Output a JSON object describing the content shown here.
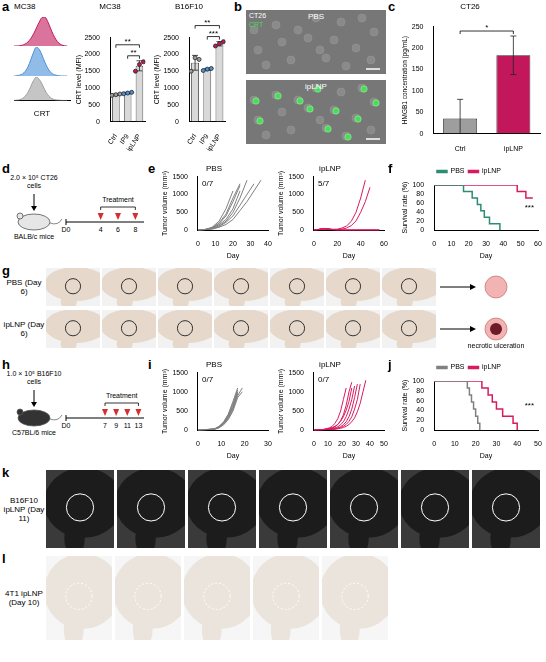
{
  "chart_data": [
    {
      "panel": "a",
      "type": "ridgeline",
      "title": "MC38",
      "x_label": "CRT",
      "tick_labels": false,
      "x": [
        0,
        5,
        10,
        15,
        20,
        25,
        30,
        35,
        40,
        45,
        50,
        55,
        60,
        65,
        70,
        75,
        80,
        85,
        90,
        95
      ],
      "xlim": [
        0,
        100
      ],
      "ylim": [
        0,
        100
      ],
      "series": [
        {
          "color": "#c2185b",
          "values": [
            0,
            0,
            1,
            3,
            7,
            14,
            26,
            42,
            62,
            82,
            98,
            100,
            85,
            62,
            40,
            22,
            10,
            4,
            1,
            0
          ]
        },
        {
          "color": "#4a90d9",
          "values": [
            0,
            1,
            3,
            7,
            16,
            32,
            56,
            82,
            100,
            92,
            72,
            48,
            28,
            14,
            6,
            3,
            1,
            0,
            0,
            0
          ]
        },
        {
          "color": "#9e9e9e",
          "values": [
            0,
            1,
            3,
            8,
            18,
            35,
            60,
            85,
            100,
            90,
            70,
            45,
            25,
            12,
            5,
            2,
            1,
            0,
            0,
            0
          ]
        }
      ]
    },
    {
      "type": "bar",
      "title": "MC38",
      "y_label": "CRT level (MFI)",
      "categories": [
        "Ctrl",
        "IP9",
        "ipLNP"
      ],
      "values": [
        800,
        850,
        1660
      ],
      "errors": [
        20,
        20,
        150
      ],
      "points": [
        [
          780,
          800,
          820
        ],
        [
          830,
          850,
          870
        ],
        [
          1500,
          1700,
          1780
        ]
      ],
      "colors": [
        "#9e9e9e",
        "#4a90d9",
        "#c2185b"
      ],
      "ylim": [
        0,
        2500
      ],
      "yticks": [
        0,
        500,
        1000,
        1500,
        2000,
        2500
      ],
      "significance": [
        {
          "from": "IP9",
          "to": "ipLNP",
          "label": "**"
        },
        {
          "from": "Ctrl",
          "to": "ipLNP",
          "label": "**"
        }
      ]
    },
    {
      "type": "bar",
      "title": "B16F10",
      "y_label": "CRT level (MFI)",
      "categories": [
        "Ctrl",
        "IP9",
        "ipLNP"
      ],
      "values": [
        1750,
        1553,
        2317
      ],
      "errors": [
        220,
        30,
        65
      ],
      "points": [
        [
          1500,
          1900,
          1850
        ],
        [
          1520,
          1560,
          1580
        ],
        [
          2250,
          2320,
          2380
        ]
      ],
      "colors": [
        "#9e9e9e",
        "#4a90d9",
        "#c2185b"
      ],
      "ylim": [
        0,
        2500
      ],
      "yticks": [
        0,
        500,
        1000,
        1500,
        2000,
        2500
      ],
      "significance": [
        {
          "from": "IP9",
          "to": "ipLNP",
          "label": "***"
        },
        {
          "from": "Ctrl",
          "to": "ipLNP",
          "label": "**"
        }
      ]
    },
    {
      "panel": "c",
      "type": "bar",
      "title": "CT26",
      "y_label": "HMGB1 concentration (pg/mL)",
      "categories": [
        "Ctrl",
        "ipLNP"
      ],
      "values": [
        35,
        183
      ],
      "errors": [
        45,
        45
      ],
      "colors": [
        "#9e9e9e",
        "#c2185b"
      ],
      "ylim": [
        0,
        250
      ],
      "yticks": [
        0,
        50,
        100,
        150,
        200,
        250
      ],
      "significance": [
        {
          "from": "Ctrl",
          "to": "ipLNP",
          "label": "*"
        }
      ]
    },
    {
      "panel": "e",
      "type": "line",
      "title": "PBS",
      "annotation": "0/7",
      "x_label": "Day",
      "y_label": "Tumor volume (mm³)",
      "x": [
        0,
        4,
        8,
        12,
        16,
        20,
        24,
        28,
        32,
        36
      ],
      "xlim": [
        0,
        40
      ],
      "xticks": [
        0,
        10,
        20,
        30,
        40
      ],
      "ylim": [
        0,
        1500
      ],
      "yticks": [
        0,
        500,
        1000,
        1500
      ],
      "series": [
        {
          "color": "#808080",
          "values": [
            0,
            20,
            60,
            150,
            300,
            600,
            1100,
            null,
            null,
            null
          ]
        },
        {
          "color": "#808080",
          "values": [
            0,
            15,
            50,
            120,
            250,
            500,
            900,
            1400,
            null,
            null
          ]
        },
        {
          "color": "#808080",
          "values": [
            0,
            20,
            70,
            200,
            450,
            900,
            1300,
            null,
            null,
            null
          ]
        },
        {
          "color": "#808080",
          "values": [
            0,
            10,
            40,
            100,
            220,
            400,
            700,
            1000,
            1300,
            null
          ]
        },
        {
          "color": "#808080",
          "values": [
            0,
            10,
            30,
            80,
            160,
            300,
            550,
            800,
            1100,
            1400
          ]
        },
        {
          "color": "#808080",
          "values": [
            0,
            20,
            80,
            250,
            600,
            1100,
            null,
            null,
            null,
            null
          ]
        },
        {
          "color": "#808080",
          "values": [
            0,
            15,
            60,
            180,
            400,
            800,
            1250,
            null,
            null,
            null
          ]
        }
      ]
    },
    {
      "type": "line",
      "title": "ipLNP",
      "annotation": "5/7",
      "x_label": "Day",
      "y_label": "Tumor volume (mm³)",
      "x": [
        0,
        4,
        8,
        12,
        16,
        20,
        24,
        28,
        32,
        36,
        40,
        44,
        48,
        52,
        56
      ],
      "xlim": [
        0,
        60
      ],
      "xticks": [
        0,
        20,
        40,
        60
      ],
      "ylim": [
        0,
        1500
      ],
      "yticks": [
        0,
        500,
        1000,
        1500
      ],
      "series": [
        {
          "color": "#d81b60",
          "values": [
            0,
            20,
            40,
            30,
            10,
            0,
            0,
            0,
            0,
            0,
            0,
            0,
            0,
            0,
            0
          ]
        },
        {
          "color": "#d81b60",
          "values": [
            0,
            25,
            50,
            40,
            20,
            5,
            0,
            0,
            0,
            0,
            0,
            0,
            0,
            0,
            0
          ]
        },
        {
          "color": "#d81b60",
          "values": [
            0,
            15,
            35,
            25,
            10,
            0,
            0,
            0,
            0,
            0,
            0,
            0,
            0,
            0,
            0
          ]
        },
        {
          "color": "#d81b60",
          "values": [
            0,
            20,
            45,
            35,
            15,
            5,
            0,
            0,
            0,
            0,
            0,
            0,
            0,
            0,
            0
          ]
        },
        {
          "color": "#d81b60",
          "values": [
            0,
            10,
            30,
            20,
            5,
            0,
            0,
            0,
            0,
            0,
            0,
            0,
            0,
            0,
            0
          ]
        },
        {
          "color": "#d81b60",
          "values": [
            0,
            20,
            40,
            30,
            20,
            30,
            60,
            120,
            250,
            500,
            900,
            1400,
            null,
            null,
            null
          ]
        },
        {
          "color": "#d81b60",
          "values": [
            0,
            15,
            40,
            35,
            25,
            20,
            30,
            60,
            130,
            260,
            500,
            800,
            1200,
            null,
            null
          ]
        }
      ]
    },
    {
      "panel": "f",
      "type": "step",
      "annotation": "***",
      "x_label": "Day",
      "y_label": "Survival rate (%)",
      "xlim": [
        0,
        60
      ],
      "xticks": [
        0,
        10,
        20,
        30,
        40,
        50,
        60
      ],
      "ylim": [
        0,
        100
      ],
      "yticks": [
        0,
        20,
        40,
        60,
        80,
        100
      ],
      "legend": "top",
      "series": [
        {
          "name": "PBS",
          "color": "#2e8b74",
          "x": [
            0,
            17,
            22,
            25,
            27,
            29,
            32,
            38
          ],
          "values": [
            100,
            85.7,
            71.4,
            57.1,
            42.9,
            28.6,
            14.3,
            0
          ]
        },
        {
          "name": "ipLNP",
          "color": "#d81b60",
          "x": [
            0,
            48,
            53,
            57
          ],
          "values": [
            100,
            85.7,
            71.4,
            71.4
          ]
        }
      ]
    },
    {
      "panel": "i",
      "type": "line",
      "title": "PBS",
      "annotation": "0/7",
      "x_label": "Day",
      "y_label": "Tumor volume (mm³)",
      "x": [
        0,
        7,
        9,
        11,
        13,
        15,
        17,
        19
      ],
      "xlim": [
        0,
        30
      ],
      "xticks": [
        0,
        10,
        20,
        30
      ],
      "ylim": [
        0,
        1500
      ],
      "yticks": [
        0,
        500,
        1000,
        1500
      ],
      "series": [
        {
          "color": "#808080",
          "values": [
            0,
            30,
            80,
            180,
            350,
            600,
            1000,
            null
          ]
        },
        {
          "color": "#808080",
          "values": [
            0,
            25,
            70,
            160,
            300,
            550,
            900,
            1100
          ]
        },
        {
          "color": "#808080",
          "values": [
            0,
            30,
            90,
            200,
            400,
            700,
            1050,
            null
          ]
        },
        {
          "color": "#808080",
          "values": [
            0,
            20,
            60,
            140,
            280,
            500,
            850,
            1000
          ]
        },
        {
          "color": "#808080",
          "values": [
            0,
            35,
            100,
            220,
            420,
            750,
            1100,
            null
          ]
        },
        {
          "color": "#808080",
          "values": [
            0,
            25,
            75,
            170,
            330,
            580,
            950,
            null
          ]
        },
        {
          "color": "#808080",
          "values": [
            0,
            30,
            85,
            190,
            370,
            650,
            1000,
            null
          ]
        }
      ]
    },
    {
      "type": "line",
      "title": "ipLNP",
      "annotation": "0/7",
      "x_label": "Day",
      "y_label": "Tumor volume (mm³)",
      "x": [
        0,
        7,
        9,
        11,
        13,
        15,
        17,
        19,
        21,
        23,
        25,
        27,
        29,
        31,
        33,
        35,
        37,
        39,
        41
      ],
      "xlim": [
        0,
        50
      ],
      "xticks": [
        0,
        10,
        20,
        30,
        40,
        50
      ],
      "ylim": [
        0,
        1500
      ],
      "yticks": [
        0,
        500,
        1000,
        1500
      ],
      "series": [
        {
          "color": "#d81b60",
          "values": [
            0,
            20,
            40,
            60,
            100,
            180,
            300,
            500,
            800,
            1100,
            null,
            null,
            null,
            null,
            null,
            null,
            null,
            null,
            null
          ]
        },
        {
          "color": "#d81b60",
          "values": [
            0,
            15,
            30,
            40,
            60,
            90,
            150,
            250,
            400,
            650,
            1000,
            1250,
            null,
            null,
            null,
            null,
            null,
            null,
            null
          ]
        },
        {
          "color": "#d81b60",
          "values": [
            0,
            20,
            35,
            50,
            70,
            100,
            150,
            230,
            350,
            520,
            750,
            1100,
            null,
            null,
            null,
            null,
            null,
            null,
            null
          ]
        },
        {
          "color": "#d81b60",
          "values": [
            0,
            15,
            25,
            30,
            40,
            60,
            90,
            140,
            220,
            350,
            550,
            800,
            1150,
            null,
            null,
            null,
            null,
            null,
            null
          ]
        },
        {
          "color": "#d81b60",
          "values": [
            0,
            10,
            20,
            25,
            30,
            40,
            60,
            90,
            140,
            220,
            350,
            550,
            850,
            1200,
            null,
            null,
            null,
            null,
            null
          ]
        },
        {
          "color": "#d81b60",
          "values": [
            0,
            10,
            20,
            20,
            25,
            35,
            50,
            70,
            100,
            150,
            230,
            350,
            550,
            800,
            1200,
            null,
            null,
            null,
            null
          ]
        },
        {
          "color": "#d81b60",
          "values": [
            0,
            10,
            15,
            20,
            20,
            25,
            35,
            50,
            70,
            100,
            150,
            220,
            320,
            480,
            700,
            1000,
            1300,
            null,
            null
          ]
        }
      ]
    },
    {
      "panel": "j",
      "type": "step",
      "annotation": "***",
      "x_label": "Day",
      "y_label": "Survival rate (%)",
      "xlim": [
        0,
        50
      ],
      "xticks": [
        0,
        10,
        20,
        30,
        40,
        50
      ],
      "ylim": [
        0,
        100
      ],
      "yticks": [
        0,
        20,
        40,
        60,
        80,
        100
      ],
      "legend": "top",
      "series": [
        {
          "name": "PBS",
          "color": "#808080",
          "x": [
            0,
            16,
            17,
            18,
            19,
            20,
            21,
            22
          ],
          "values": [
            100,
            85.7,
            71.4,
            57.1,
            42.9,
            28.6,
            14.3,
            0
          ]
        },
        {
          "name": "ipLNP",
          "color": "#d81b60",
          "x": [
            0,
            23,
            26,
            28,
            30,
            33,
            38,
            40
          ],
          "values": [
            100,
            85.7,
            71.4,
            57.1,
            42.9,
            28.6,
            14.3,
            0
          ]
        }
      ]
    }
  ],
  "images": {
    "panel": "b",
    "cell_line": "CT26",
    "stain": "CRT",
    "rows": [
      "PBS",
      "ipLNP"
    ]
  },
  "diagrams": [
    {
      "panel": "d",
      "cells": "2.0 × 10⁵ CT26 cells",
      "mice": "BALB/c mice",
      "start": "D0",
      "treatment": "Treatment",
      "treatment_days": [
        4,
        6,
        8
      ]
    },
    {
      "panel": "h",
      "cells": "1.0 × 10⁵ B16F10 cells",
      "mice": "C57BL/6 mice",
      "start": "D0",
      "treatment": "Treatment",
      "treatment_days": [
        7,
        9,
        11,
        13
      ]
    }
  ],
  "photos": [
    {
      "panel": "g",
      "rows": [
        {
          "label": "PBS (Day 6)",
          "count": 7
        },
        {
          "label": "ipLNP (Day 6)",
          "count": 7,
          "outcome": "necrotic ulceration"
        }
      ]
    },
    {
      "panel": "k",
      "rows": [
        {
          "label": "B16F10 ipLNP (Day 11)",
          "count": 7
        }
      ]
    },
    {
      "panel": "l",
      "rows": [
        {
          "label": "4T1 ipLNP (Day 10)",
          "count": 5
        }
      ]
    }
  ]
}
